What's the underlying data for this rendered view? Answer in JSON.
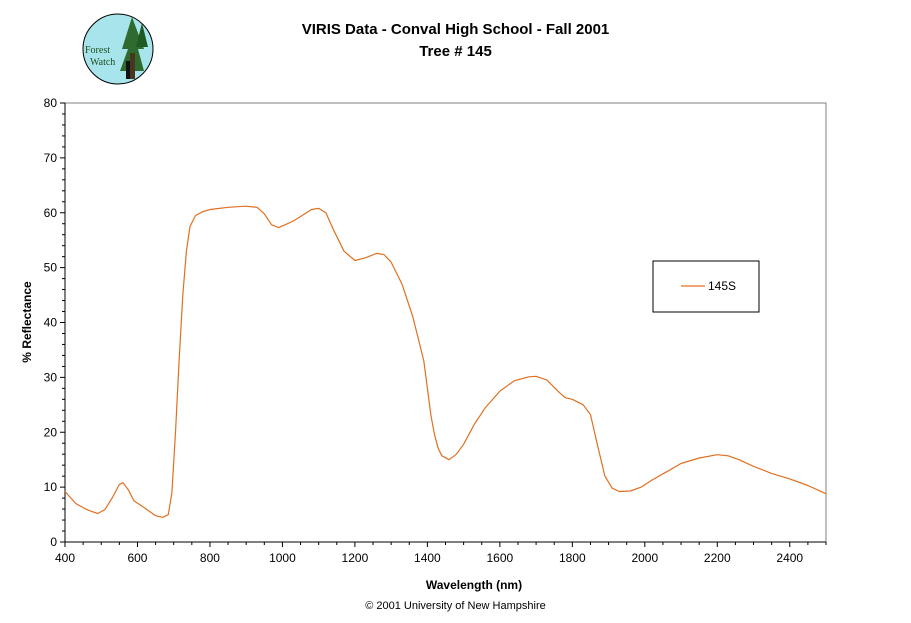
{
  "header": {
    "logo_text_1": "Forest",
    "logo_text_2": "Watch"
  },
  "chart_data": {
    "type": "line",
    "title": "VIRIS Data - Conval High School - Fall 2001",
    "subtitle": "Tree # 145",
    "xlabel": "Wavelength (nm)",
    "ylabel": "% Reflectance",
    "xlim": [
      400,
      2500
    ],
    "ylim": [
      0,
      80
    ],
    "xticks": [
      400,
      600,
      800,
      1000,
      1200,
      1400,
      1600,
      1800,
      2000,
      2200,
      2400
    ],
    "yticks": [
      0,
      10,
      20,
      30,
      40,
      50,
      60,
      70,
      80
    ],
    "legend_position": "right",
    "grid": false,
    "series": [
      {
        "name": "145S",
        "color": "#E07020",
        "x": [
          400,
          430,
          460,
          490,
          510,
          530,
          550,
          560,
          575,
          590,
          620,
          650,
          670,
          685,
          695,
          705,
          715,
          725,
          735,
          745,
          760,
          780,
          800,
          850,
          900,
          930,
          950,
          970,
          990,
          1010,
          1030,
          1050,
          1080,
          1100,
          1120,
          1140,
          1170,
          1200,
          1230,
          1260,
          1280,
          1300,
          1330,
          1360,
          1390,
          1410,
          1420,
          1430,
          1440,
          1460,
          1480,
          1500,
          1530,
          1560,
          1600,
          1640,
          1680,
          1700,
          1730,
          1760,
          1780,
          1800,
          1830,
          1850,
          1870,
          1890,
          1910,
          1930,
          1960,
          1990,
          2020,
          2060,
          2100,
          2150,
          2200,
          2230,
          2260,
          2300,
          2350,
          2400,
          2450,
          2480,
          2500
        ],
        "y": [
          9.2,
          7.0,
          5.9,
          5.2,
          5.9,
          8.0,
          10.5,
          10.8,
          9.5,
          7.5,
          6.2,
          4.8,
          4.5,
          5.0,
          9.0,
          20.0,
          33.0,
          45.0,
          53.0,
          57.5,
          59.5,
          60.2,
          60.6,
          61.0,
          61.2,
          61.0,
          59.8,
          57.8,
          57.3,
          57.9,
          58.5,
          59.3,
          60.6,
          60.8,
          60.0,
          57.0,
          53.0,
          51.3,
          51.8,
          52.6,
          52.4,
          51.0,
          47.0,
          41.0,
          33.0,
          23.0,
          19.5,
          17.0,
          15.7,
          15.0,
          16.0,
          17.8,
          21.5,
          24.5,
          27.5,
          29.4,
          30.1,
          30.2,
          29.5,
          27.5,
          26.3,
          26.0,
          25.0,
          23.2,
          17.5,
          12.0,
          9.8,
          9.2,
          9.3,
          10.0,
          11.3,
          12.8,
          14.3,
          15.3,
          15.9,
          15.7,
          15.0,
          13.8,
          12.5,
          11.5,
          10.3,
          9.4,
          8.8
        ]
      }
    ]
  },
  "footer": {
    "copyright": "© 2001 University of New Hampshire"
  }
}
